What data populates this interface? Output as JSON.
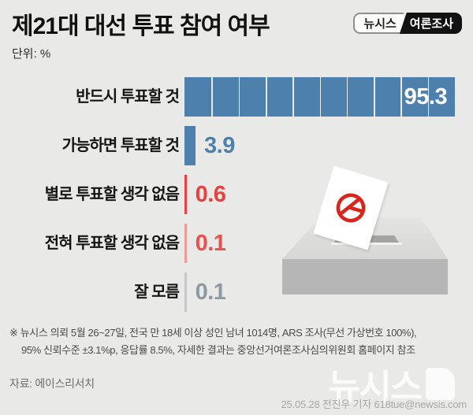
{
  "header": {
    "title": "제21대 대선 투표 참여 여부",
    "badge": {
      "brand": "뉴시스",
      "label": "여론조사"
    },
    "unit_label": "단위: %"
  },
  "chart_data": {
    "type": "bar",
    "orientation": "horizontal",
    "title": "제21대 대선 투표 참여 여부",
    "unit": "%",
    "xlim": [
      0,
      100
    ],
    "grid": "white segment lines dividing the large bar into 10 parts",
    "legend_position": "none",
    "categories": [
      "반드시 투표할 것",
      "가능하면 투표할 것",
      "별로 투표할 생각 없음",
      "전혀 투표할 생각 없음",
      "잘 모름"
    ],
    "values": [
      95.3,
      3.9,
      0.6,
      0.1,
      0.1
    ],
    "value_labels": [
      "95.3",
      "3.9",
      "0.6",
      "0.1",
      "0.1"
    ],
    "bar_colors": [
      "#4d80ad",
      "#4d80ad",
      "#e8413f",
      "#f09a98",
      "#c5c9cb"
    ],
    "value_colors": [
      "#ffffff",
      "#4d80ad",
      "#e8413f",
      "#ea514e",
      "#8d9aa2"
    ],
    "value_placement": [
      "inside-right",
      "outside-right",
      "outside-right",
      "outside-right",
      "outside-right"
    ]
  },
  "illustration": {
    "name": "ballot-box-with-stamped-ballot",
    "stamp_color": "#d9261c"
  },
  "watermark": "뉴시스",
  "footnotes": {
    "line1": "※ 뉴시스 의뢰 5월 26~27일, 전국 만 18세 이상 성인 남녀 1014명, ARS 조사(무선 가상번호 100%),",
    "line2": "95% 신뢰수준 ±3.1%p, 응답률 8.5%, 자세한 결과는 중앙선거여론조사심의위원회 홈페이지 참조",
    "source": "자료: 에이스리서치",
    "credit": "25.05.28 전진우 기자 618tue@newsis.com"
  }
}
